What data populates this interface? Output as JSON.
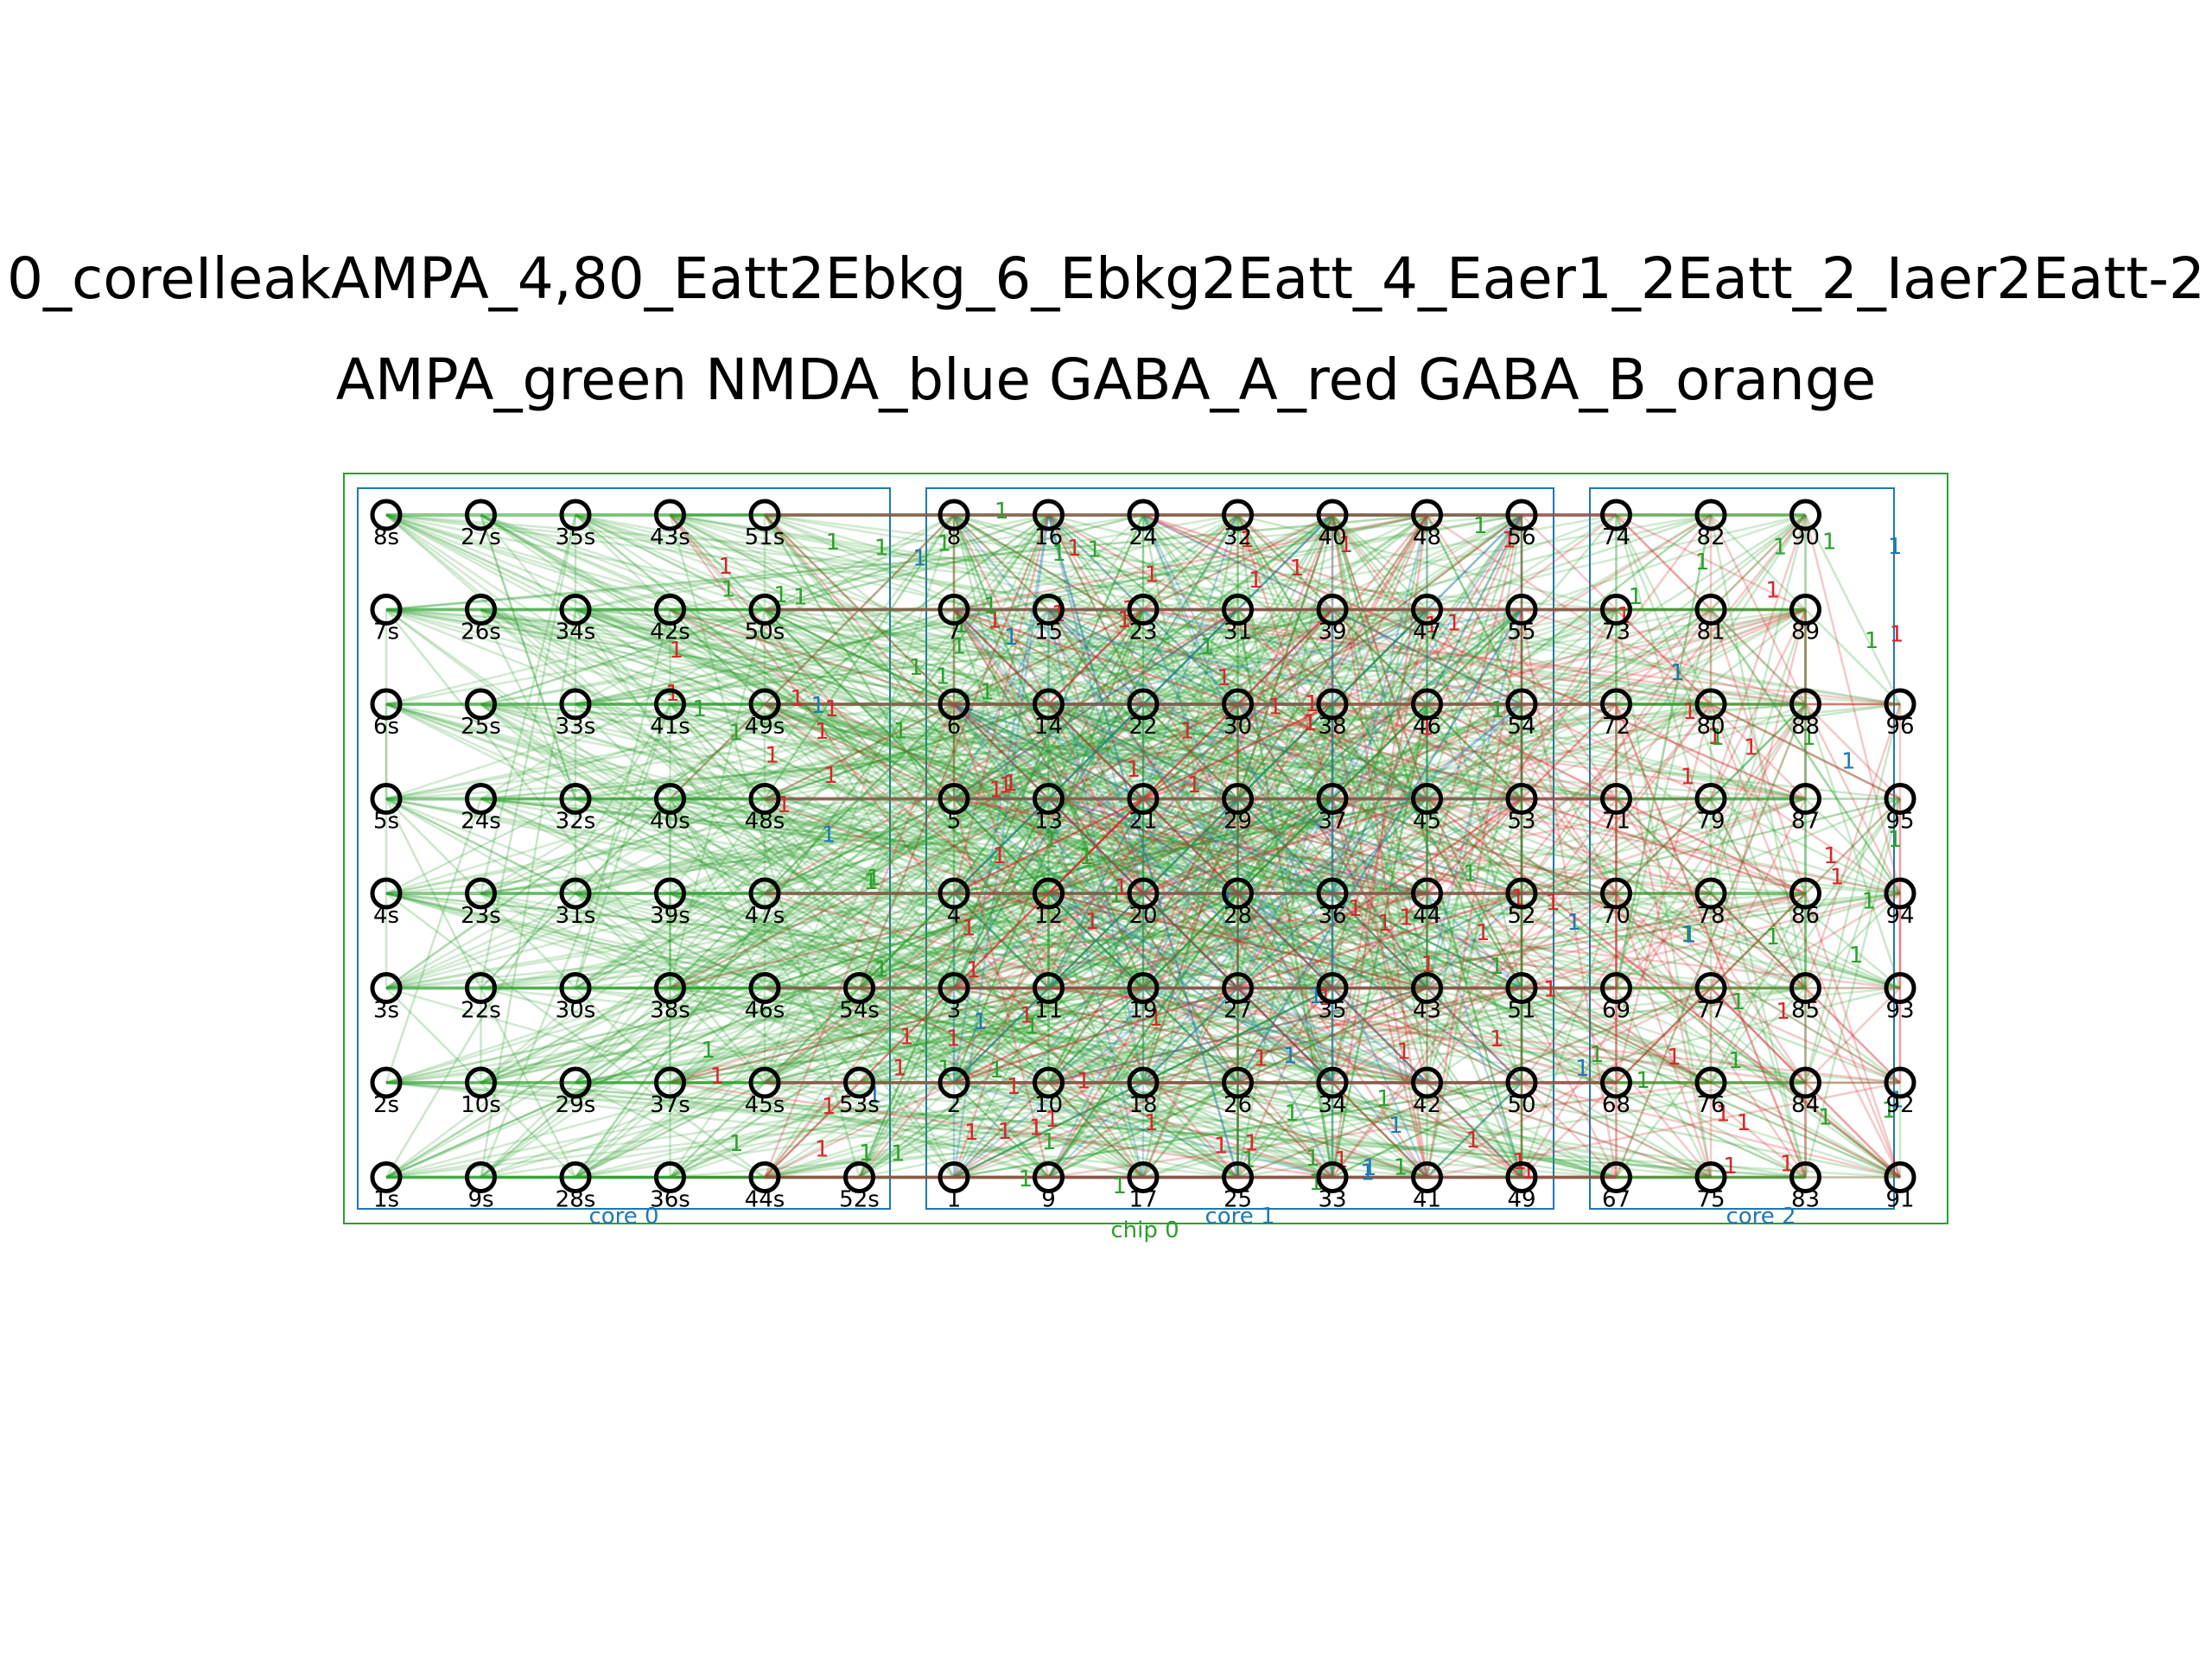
{
  "title": {
    "line1": "0_coreIleakAMPA_4,80_Eatt2Ebkg_6_Ebkg2Eatt_4_Eaer1_2Eatt_2_Iaer2Eatt-2",
    "line2": "AMPA_green NMDA_blue GABA_A_red GABA_B_orange"
  },
  "colors": {
    "ampa": "#2ca02c",
    "nmda": "#1f77b4",
    "gaba_a": "#d62728",
    "gaba_b": "#ff7f0e",
    "core_box": "#1f77b4",
    "chip_box": "#2ca02c",
    "node_stroke": "#000000"
  },
  "boxes": {
    "chip": "chip 0",
    "cores": [
      "core 0",
      "core 1",
      "core 2"
    ]
  },
  "weight_label": "1",
  "grid": {
    "columns": 17,
    "rows": 8,
    "nodes": [
      {
        "label": "8s",
        "col": 0,
        "row": 0
      },
      {
        "label": "27s",
        "col": 1,
        "row": 0
      },
      {
        "label": "35s",
        "col": 2,
        "row": 0
      },
      {
        "label": "43s",
        "col": 3,
        "row": 0
      },
      {
        "label": "51s",
        "col": 4,
        "row": 0
      },
      {
        "label": "7s",
        "col": 0,
        "row": 1
      },
      {
        "label": "26s",
        "col": 1,
        "row": 1
      },
      {
        "label": "34s",
        "col": 2,
        "row": 1
      },
      {
        "label": "42s",
        "col": 3,
        "row": 1
      },
      {
        "label": "50s",
        "col": 4,
        "row": 1
      },
      {
        "label": "6s",
        "col": 0,
        "row": 2
      },
      {
        "label": "25s",
        "col": 1,
        "row": 2
      },
      {
        "label": "33s",
        "col": 2,
        "row": 2
      },
      {
        "label": "41s",
        "col": 3,
        "row": 2
      },
      {
        "label": "49s",
        "col": 4,
        "row": 2
      },
      {
        "label": "5s",
        "col": 0,
        "row": 3
      },
      {
        "label": "24s",
        "col": 1,
        "row": 3
      },
      {
        "label": "32s",
        "col": 2,
        "row": 3
      },
      {
        "label": "40s",
        "col": 3,
        "row": 3
      },
      {
        "label": "48s",
        "col": 4,
        "row": 3
      },
      {
        "label": "4s",
        "col": 0,
        "row": 4
      },
      {
        "label": "23s",
        "col": 1,
        "row": 4
      },
      {
        "label": "31s",
        "col": 2,
        "row": 4
      },
      {
        "label": "39s",
        "col": 3,
        "row": 4
      },
      {
        "label": "47s",
        "col": 4,
        "row": 4
      },
      {
        "label": "3s",
        "col": 0,
        "row": 5
      },
      {
        "label": "22s",
        "col": 1,
        "row": 5
      },
      {
        "label": "30s",
        "col": 2,
        "row": 5
      },
      {
        "label": "38s",
        "col": 3,
        "row": 5
      },
      {
        "label": "46s",
        "col": 4,
        "row": 5
      },
      {
        "label": "54s",
        "col": 5,
        "row": 5
      },
      {
        "label": "2s",
        "col": 0,
        "row": 6
      },
      {
        "label": "10s",
        "col": 1,
        "row": 6
      },
      {
        "label": "29s",
        "col": 2,
        "row": 6
      },
      {
        "label": "37s",
        "col": 3,
        "row": 6
      },
      {
        "label": "45s",
        "col": 4,
        "row": 6
      },
      {
        "label": "53s",
        "col": 5,
        "row": 6
      },
      {
        "label": "1s",
        "col": 0,
        "row": 7
      },
      {
        "label": "9s",
        "col": 1,
        "row": 7
      },
      {
        "label": "28s",
        "col": 2,
        "row": 7
      },
      {
        "label": "36s",
        "col": 3,
        "row": 7
      },
      {
        "label": "44s",
        "col": 4,
        "row": 7
      },
      {
        "label": "52s",
        "col": 5,
        "row": 7
      },
      {
        "label": "8",
        "col": 6,
        "row": 0
      },
      {
        "label": "16",
        "col": 7,
        "row": 0
      },
      {
        "label": "24",
        "col": 8,
        "row": 0
      },
      {
        "label": "32",
        "col": 9,
        "row": 0
      },
      {
        "label": "40",
        "col": 10,
        "row": 0
      },
      {
        "label": "48",
        "col": 11,
        "row": 0
      },
      {
        "label": "56",
        "col": 12,
        "row": 0
      },
      {
        "label": "7",
        "col": 6,
        "row": 1
      },
      {
        "label": "15",
        "col": 7,
        "row": 1
      },
      {
        "label": "23",
        "col": 8,
        "row": 1
      },
      {
        "label": "31",
        "col": 9,
        "row": 1
      },
      {
        "label": "39",
        "col": 10,
        "row": 1
      },
      {
        "label": "47",
        "col": 11,
        "row": 1
      },
      {
        "label": "55",
        "col": 12,
        "row": 1
      },
      {
        "label": "6",
        "col": 6,
        "row": 2
      },
      {
        "label": "14",
        "col": 7,
        "row": 2
      },
      {
        "label": "22",
        "col": 8,
        "row": 2
      },
      {
        "label": "30",
        "col": 9,
        "row": 2
      },
      {
        "label": "38",
        "col": 10,
        "row": 2
      },
      {
        "label": "46",
        "col": 11,
        "row": 2
      },
      {
        "label": "54",
        "col": 12,
        "row": 2
      },
      {
        "label": "5",
        "col": 6,
        "row": 3
      },
      {
        "label": "13",
        "col": 7,
        "row": 3
      },
      {
        "label": "21",
        "col": 8,
        "row": 3
      },
      {
        "label": "29",
        "col": 9,
        "row": 3
      },
      {
        "label": "37",
        "col": 10,
        "row": 3
      },
      {
        "label": "45",
        "col": 11,
        "row": 3
      },
      {
        "label": "53",
        "col": 12,
        "row": 3
      },
      {
        "label": "4",
        "col": 6,
        "row": 4
      },
      {
        "label": "12",
        "col": 7,
        "row": 4
      },
      {
        "label": "20",
        "col": 8,
        "row": 4
      },
      {
        "label": "28",
        "col": 9,
        "row": 4
      },
      {
        "label": "36",
        "col": 10,
        "row": 4
      },
      {
        "label": "44",
        "col": 11,
        "row": 4
      },
      {
        "label": "52",
        "col": 12,
        "row": 4
      },
      {
        "label": "3",
        "col": 6,
        "row": 5
      },
      {
        "label": "11",
        "col": 7,
        "row": 5
      },
      {
        "label": "19",
        "col": 8,
        "row": 5
      },
      {
        "label": "27",
        "col": 9,
        "row": 5
      },
      {
        "label": "35",
        "col": 10,
        "row": 5
      },
      {
        "label": "43",
        "col": 11,
        "row": 5
      },
      {
        "label": "51",
        "col": 12,
        "row": 5
      },
      {
        "label": "2",
        "col": 6,
        "row": 6
      },
      {
        "label": "10",
        "col": 7,
        "row": 6
      },
      {
        "label": "18",
        "col": 8,
        "row": 6
      },
      {
        "label": "26",
        "col": 9,
        "row": 6
      },
      {
        "label": "34",
        "col": 10,
        "row": 6
      },
      {
        "label": "42",
        "col": 11,
        "row": 6
      },
      {
        "label": "50",
        "col": 12,
        "row": 6
      },
      {
        "label": "1",
        "col": 6,
        "row": 7
      },
      {
        "label": "9",
        "col": 7,
        "row": 7
      },
      {
        "label": "17",
        "col": 8,
        "row": 7
      },
      {
        "label": "25",
        "col": 9,
        "row": 7
      },
      {
        "label": "33",
        "col": 10,
        "row": 7
      },
      {
        "label": "41",
        "col": 11,
        "row": 7
      },
      {
        "label": "49",
        "col": 12,
        "row": 7
      },
      {
        "label": "74",
        "col": 13,
        "row": 0
      },
      {
        "label": "82",
        "col": 14,
        "row": 0
      },
      {
        "label": "90",
        "col": 15,
        "row": 0
      },
      {
        "label": "73",
        "col": 13,
        "row": 1
      },
      {
        "label": "81",
        "col": 14,
        "row": 1
      },
      {
        "label": "89",
        "col": 15,
        "row": 1
      },
      {
        "label": "72",
        "col": 13,
        "row": 2
      },
      {
        "label": "80",
        "col": 14,
        "row": 2
      },
      {
        "label": "88",
        "col": 15,
        "row": 2
      },
      {
        "label": "96",
        "col": 16,
        "row": 2
      },
      {
        "label": "71",
        "col": 13,
        "row": 3
      },
      {
        "label": "79",
        "col": 14,
        "row": 3
      },
      {
        "label": "87",
        "col": 15,
        "row": 3
      },
      {
        "label": "95",
        "col": 16,
        "row": 3
      },
      {
        "label": "70",
        "col": 13,
        "row": 4
      },
      {
        "label": "78",
        "col": 14,
        "row": 4
      },
      {
        "label": "86",
        "col": 15,
        "row": 4
      },
      {
        "label": "94",
        "col": 16,
        "row": 4
      },
      {
        "label": "69",
        "col": 13,
        "row": 5
      },
      {
        "label": "77",
        "col": 14,
        "row": 5
      },
      {
        "label": "85",
        "col": 15,
        "row": 5
      },
      {
        "label": "93",
        "col": 16,
        "row": 5
      },
      {
        "label": "68",
        "col": 13,
        "row": 6
      },
      {
        "label": "76",
        "col": 14,
        "row": 6
      },
      {
        "label": "84",
        "col": 15,
        "row": 6
      },
      {
        "label": "92",
        "col": 16,
        "row": 6
      },
      {
        "label": "67",
        "col": 13,
        "row": 7
      },
      {
        "label": "75",
        "col": 14,
        "row": 7
      },
      {
        "label": "83",
        "col": 15,
        "row": 7
      },
      {
        "label": "91",
        "col": 16,
        "row": 7
      }
    ]
  }
}
